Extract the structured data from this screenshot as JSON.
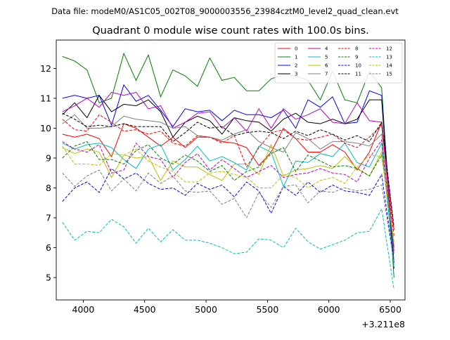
{
  "chart_data": {
    "type": "line",
    "suptitle": "Data file: modeM0/AS1C05_002T08_9000003556_23984cztM0_level2_quad_clean.evt",
    "title": "Quadrant 0 module wise count rates with 100.0s bins.",
    "xlabel": "",
    "ylabel": "",
    "x_offset_label": "+3.211e8",
    "xlim": [
      3780,
      6620
    ],
    "ylim": [
      4.25,
      12.95
    ],
    "x_ticks": [
      4000,
      4500,
      5000,
      5500,
      6000,
      6500
    ],
    "y_ticks": [
      5,
      6,
      7,
      8,
      9,
      10,
      11,
      12
    ],
    "legend_position": "upper-right",
    "x": [
      3830,
      3930,
      4030,
      4130,
      4230,
      4330,
      4430,
      4530,
      4630,
      4730,
      4830,
      4930,
      5030,
      5130,
      5230,
      5330,
      5430,
      5530,
      5630,
      5730,
      5830,
      5930,
      6030,
      6130,
      6230,
      6330,
      6430,
      6530
    ],
    "series": [
      {
        "name": "0",
        "color": "#ff0000",
        "dash": "solid",
        "values": [
          9.8,
          9.7,
          9.8,
          9.65,
          9.05,
          10.15,
          10.0,
          9.7,
          9.4,
          9.7,
          9.35,
          9.7,
          9.7,
          9.55,
          9.5,
          9.35,
          8.75,
          9.2,
          10.0,
          9.65,
          9.2,
          9.2,
          9.45,
          9.2,
          8.6,
          9.2,
          10.2,
          6.6
        ]
      },
      {
        "name": "1",
        "color": "#008000",
        "dash": "solid",
        "values": [
          12.4,
          12.25,
          11.95,
          10.85,
          11.0,
          12.5,
          11.6,
          12.45,
          11.05,
          11.95,
          11.75,
          11.4,
          12.35,
          11.6,
          11.7,
          11.25,
          11.25,
          11.65,
          11.8,
          11.75,
          11.6,
          10.95,
          11.9,
          10.95,
          10.85,
          11.9,
          11.35,
          5.0
        ]
      },
      {
        "name": "2",
        "color": "#0000ff",
        "dash": "solid",
        "values": [
          11.0,
          11.1,
          11.0,
          11.1,
          10.1,
          11.45,
          10.9,
          11.1,
          10.6,
          10.05,
          10.65,
          10.55,
          10.6,
          10.25,
          10.6,
          10.45,
          10.45,
          10.35,
          10.6,
          10.0,
          10.95,
          10.7,
          11.05,
          10.15,
          10.2,
          11.25,
          11.1,
          5.5
        ]
      },
      {
        "name": "3",
        "color": "#000000",
        "dash": "solid",
        "values": [
          10.45,
          10.85,
          10.35,
          11.1,
          10.55,
          10.8,
          10.75,
          10.95,
          10.55,
          9.7,
          10.2,
          10.4,
          10.25,
          9.8,
          10.35,
          10.25,
          10.2,
          9.9,
          10.3,
          10.5,
          10.2,
          10.15,
          10.3,
          10.15,
          10.3,
          10.95,
          10.95,
          5.3
        ]
      },
      {
        "name": "4",
        "color": "#bf00bf",
        "dash": "solid",
        "values": [
          10.55,
          10.75,
          11.0,
          10.7,
          11.2,
          11.1,
          11.2,
          10.65,
          10.75,
          10.0,
          10.2,
          10.5,
          10.55,
          10.0,
          10.35,
          9.9,
          10.65,
          10.0,
          10.65,
          10.3,
          10.45,
          10.65,
          10.2,
          10.15,
          10.85,
          10.25,
          10.2,
          6.0
        ]
      },
      {
        "name": "5",
        "color": "#00bfbf",
        "dash": "solid",
        "values": [
          9.5,
          9.3,
          9.45,
          9.5,
          9.35,
          8.95,
          8.65,
          9.3,
          9.45,
          8.6,
          8.95,
          9.4,
          8.9,
          9.05,
          8.85,
          8.6,
          9.4,
          9.2,
          8.05,
          8.9,
          8.85,
          9.15,
          9.05,
          9.5,
          8.85,
          8.7,
          9.5,
          5.35
        ]
      },
      {
        "name": "6",
        "color": "#bfbf00",
        "dash": "solid",
        "values": [
          9.35,
          9.15,
          9.3,
          9.2,
          8.35,
          9.1,
          9.0,
          9.05,
          8.25,
          8.9,
          8.7,
          8.7,
          8.45,
          8.25,
          8.8,
          8.8,
          8.45,
          9.45,
          8.4,
          8.6,
          8.65,
          8.75,
          8.65,
          9.05,
          8.65,
          8.4,
          9.2,
          6.1
        ]
      },
      {
        "name": "7",
        "color": "#808080",
        "dash": "solid",
        "values": [
          10.15,
          10.45,
          10.0,
          10.0,
          10.05,
          10.4,
          10.3,
          10.25,
          10.2,
          10.0,
          10.05,
          9.75,
          9.7,
          9.6,
          9.8,
          9.95,
          9.55,
          9.35,
          9.2,
          9.85,
          9.65,
          9.3,
          9.55,
          9.55,
          9.5,
          9.4,
          9.8,
          5.8
        ]
      },
      {
        "name": "8",
        "color": "#ff0000",
        "dash": "dashed",
        "values": [
          10.3,
          9.95,
          9.9,
          10.45,
          10.2,
          9.9,
          9.95,
          9.8,
          9.9,
          9.5,
          9.4,
          9.75,
          9.7,
          9.5,
          9.75,
          8.7,
          9.35,
          9.85,
          9.95,
          9.65,
          9.6,
          9.7,
          9.8,
          9.5,
          9.35,
          9.7,
          10.1,
          6.4
        ]
      },
      {
        "name": "9",
        "color": "#008000",
        "dash": "dashed",
        "values": [
          9.0,
          9.4,
          9.55,
          8.95,
          8.95,
          8.8,
          9.25,
          9.45,
          9.0,
          8.8,
          9.1,
          8.9,
          8.55,
          8.75,
          8.25,
          8.55,
          8.7,
          9.15,
          9.35,
          8.55,
          9.1,
          8.9,
          8.7,
          8.75,
          8.65,
          8.4,
          9.1,
          6.0
        ]
      },
      {
        "name": "10",
        "color": "#0000ff",
        "dash": "dashed",
        "values": [
          7.55,
          8.0,
          8.2,
          7.85,
          8.65,
          8.3,
          8.5,
          8.15,
          7.95,
          8.0,
          7.75,
          8.15,
          7.95,
          8.1,
          7.7,
          8.2,
          7.9,
          7.15,
          8.05,
          7.75,
          8.2,
          7.85,
          8.1,
          7.9,
          7.85,
          7.75,
          8.45,
          5.5
        ]
      },
      {
        "name": "11",
        "color": "#000000",
        "dash": "dashed",
        "values": [
          10.5,
          10.3,
          10.05,
          10.1,
          10.05,
          10.15,
          10.05,
          10.05,
          10.05,
          9.55,
          9.85,
          10.2,
          10.0,
          10.05,
          9.75,
          9.85,
          9.9,
          9.85,
          9.65,
          9.9,
          9.75,
          9.95,
          9.8,
          9.6,
          9.75,
          9.55,
          10.2,
          6.7
        ]
      },
      {
        "name": "12",
        "color": "#bf00bf",
        "dash": "dashed",
        "values": [
          9.55,
          9.3,
          9.2,
          9.45,
          8.5,
          8.6,
          9.5,
          9.05,
          8.95,
          8.35,
          8.85,
          9.15,
          8.6,
          8.95,
          8.65,
          8.35,
          8.55,
          8.75,
          8.35,
          8.45,
          8.5,
          8.65,
          8.5,
          8.45,
          8.2,
          9.0,
          9.6,
          5.9
        ]
      },
      {
        "name": "13",
        "color": "#00bfbf",
        "dash": "dashed",
        "values": [
          6.85,
          6.25,
          6.55,
          6.5,
          6.95,
          6.7,
          6.15,
          6.65,
          6.2,
          6.6,
          6.25,
          6.25,
          6.15,
          6.0,
          5.8,
          5.85,
          6.3,
          6.25,
          6.0,
          6.65,
          6.2,
          5.95,
          6.1,
          6.25,
          6.5,
          6.55,
          7.3,
          4.6
        ]
      },
      {
        "name": "14",
        "color": "#bfbf00",
        "dash": "dashed",
        "values": [
          9.4,
          8.8,
          8.8,
          8.75,
          9.15,
          9.1,
          9.3,
          8.9,
          8.7,
          8.55,
          8.2,
          8.2,
          8.5,
          8.55,
          8.45,
          8.35,
          8.0,
          8.0,
          8.45,
          8.35,
          8.0,
          8.25,
          8.35,
          8.15,
          8.7,
          9.1,
          9.05,
          6.2
        ]
      },
      {
        "name": "15",
        "color": "#808080",
        "dash": "dashed",
        "values": [
          8.5,
          8.05,
          8.4,
          8.6,
          7.9,
          8.3,
          7.9,
          8.5,
          8.15,
          8.4,
          7.9,
          7.85,
          7.9,
          7.45,
          7.65,
          7.0,
          7.85,
          7.35,
          8.05,
          8.1,
          7.5,
          7.9,
          7.85,
          8.0,
          7.9,
          7.95,
          8.1,
          5.5
        ]
      }
    ]
  }
}
